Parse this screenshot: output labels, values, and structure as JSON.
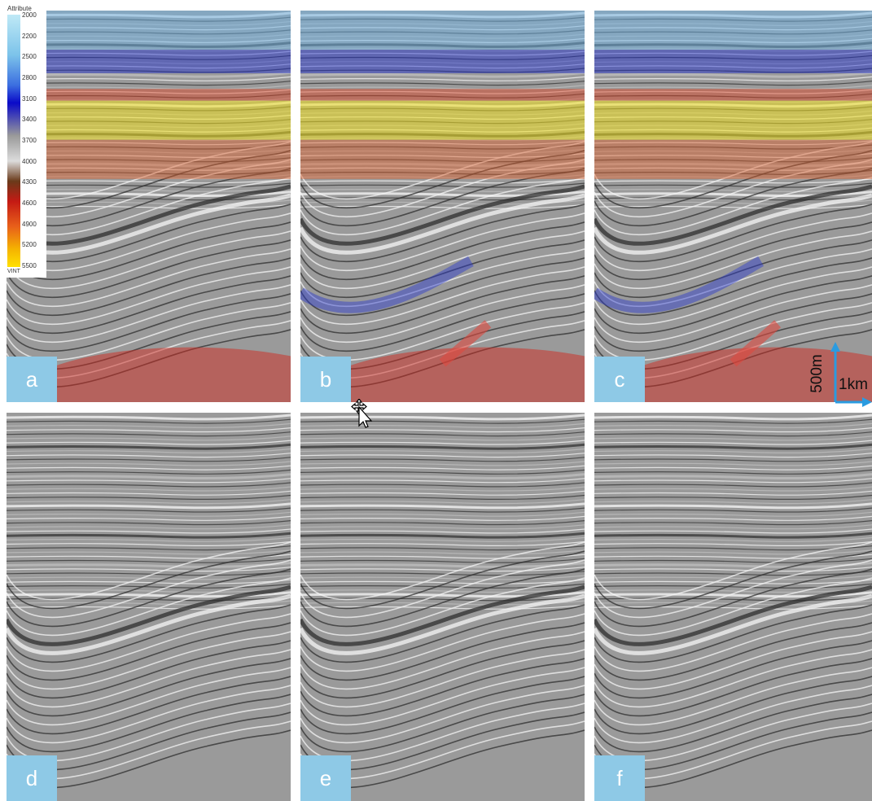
{
  "colors": {
    "label_badge": "#8ec9e6",
    "scale_arrow": "#2a9be0"
  },
  "panels": [
    {
      "label": "a",
      "overlay": "velocity-attribute",
      "icon": "seismic-section"
    },
    {
      "label": "b",
      "overlay": "velocity-attribute",
      "icon": "seismic-section"
    },
    {
      "label": "c",
      "overlay": "velocity-attribute",
      "icon": "seismic-section"
    },
    {
      "label": "d",
      "overlay": "none",
      "icon": "seismic-section"
    },
    {
      "label": "e",
      "overlay": "none",
      "icon": "seismic-section"
    },
    {
      "label": "f",
      "overlay": "none",
      "icon": "seismic-section"
    }
  ],
  "colorbar": {
    "title": "Attribute",
    "ticks": [
      "2000",
      "2200",
      "2500",
      "2800",
      "3100",
      "3400",
      "3700",
      "4000",
      "4300",
      "4600",
      "4900",
      "5200",
      "5500"
    ],
    "unit": "VINT"
  },
  "scalebar": {
    "vertical": "500m",
    "horizontal": "1km"
  }
}
